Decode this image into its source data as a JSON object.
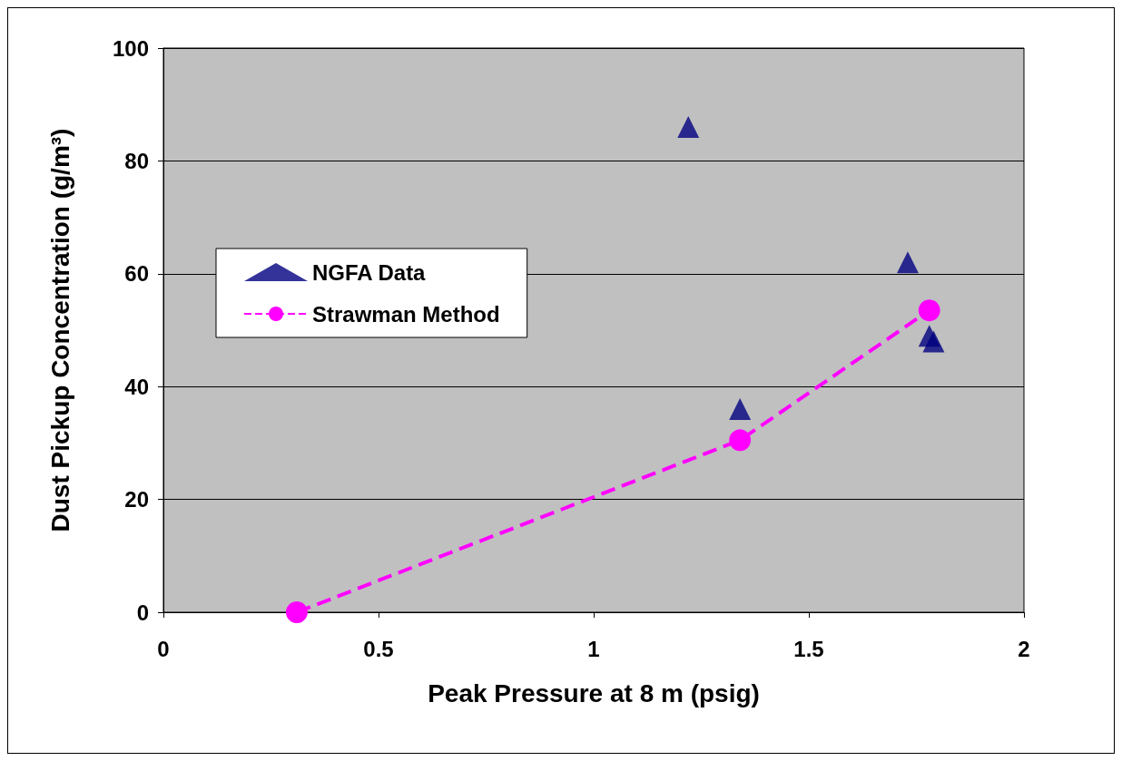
{
  "chart_data": {
    "type": "scatter",
    "xlabel": "Peak Pressure at 8 m (psig)",
    "ylabel": "Dust Pickup Concentration (g/m³)",
    "xlim": [
      0,
      2
    ],
    "xticks": [
      0,
      0.5,
      1,
      1.5,
      2
    ],
    "ylim": [
      0,
      100
    ],
    "yticks": [
      0,
      20,
      40,
      60,
      80,
      100
    ],
    "grid": "y",
    "legend": "left",
    "series": [
      {
        "name": "NGFA Data",
        "marker": "triangle",
        "color": "#000080",
        "x": [
          1.22,
          1.34,
          1.73,
          1.78,
          1.79
        ],
        "values": [
          86,
          36,
          62,
          49,
          48
        ]
      },
      {
        "name": "Strawman Method",
        "type": "line",
        "marker": "circle",
        "line_style": "dashed",
        "color": "#ff00ff",
        "x": [
          0.31,
          1.34,
          1.78
        ],
        "values": [
          0,
          30.5,
          53.5
        ]
      }
    ]
  }
}
